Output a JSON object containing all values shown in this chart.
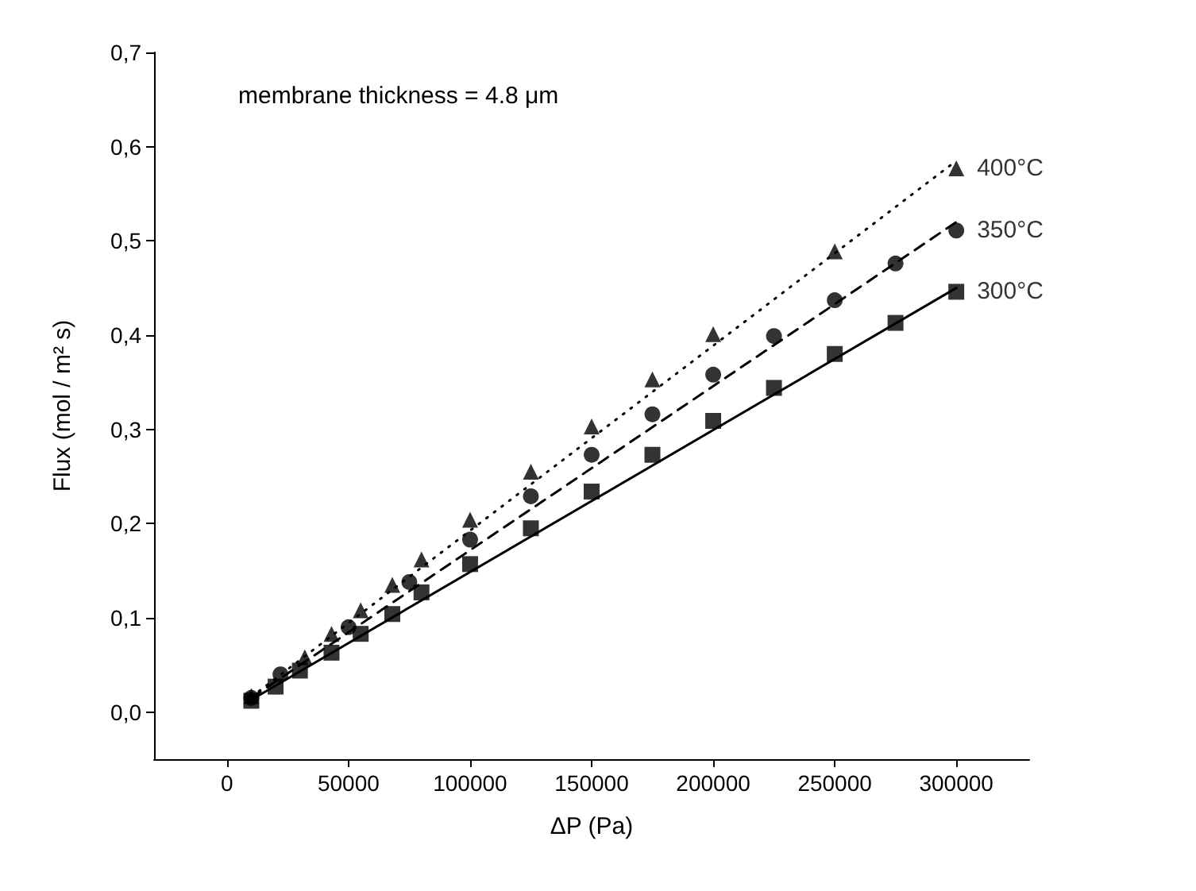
{
  "chart_data": {
    "type": "scatter",
    "xlabel": "ΔP (Pa)",
    "ylabel": "Flux (mol / m² s)",
    "annotations": [
      "membrane thickness = 4.8 μm"
    ],
    "xlim": [
      -30000,
      330000
    ],
    "xticks": [
      0,
      50000,
      100000,
      150000,
      200000,
      250000,
      300000
    ],
    "ylim": [
      -0.05,
      0.7
    ],
    "yticks": [
      {
        "value": 0,
        "label": "0,0"
      },
      {
        "value": 0.1,
        "label": "0,1"
      },
      {
        "value": 0.2,
        "label": "0,2"
      },
      {
        "value": 0.3,
        "label": "0,3"
      },
      {
        "value": 0.4,
        "label": "0,4"
      },
      {
        "value": 0.5,
        "label": "0,5"
      },
      {
        "value": 0.6,
        "label": "0,6"
      },
      {
        "value": 0.7,
        "label": "0,7"
      }
    ],
    "grid": false,
    "legend": false,
    "series": [
      {
        "name": "300°C",
        "marker": "square",
        "color": "#000000",
        "x": [
          10000,
          20000,
          30000,
          43000,
          55000,
          68000,
          80000,
          100000,
          125000,
          150000,
          175000,
          200000,
          225000,
          250000,
          275000,
          300000
        ],
        "values": [
          0.012,
          0.027,
          0.044,
          0.063,
          0.083,
          0.104,
          0.127,
          0.157,
          0.195,
          0.234,
          0.273,
          0.309,
          0.344,
          0.38,
          0.413,
          0.446
        ]
      },
      {
        "name": "350°C",
        "marker": "circle",
        "color": "#000000",
        "x": [
          10000,
          22000,
          50000,
          75000,
          100000,
          125000,
          150000,
          175000,
          200000,
          225000,
          250000,
          275000,
          300000
        ],
        "values": [
          0.015,
          0.04,
          0.09,
          0.138,
          0.183,
          0.229,
          0.273,
          0.316,
          0.358,
          0.399,
          0.437,
          0.476,
          0.511
        ]
      },
      {
        "name": "400°C",
        "marker": "triangle",
        "color": "#000000",
        "x": [
          10000,
          32000,
          43000,
          55000,
          68000,
          80000,
          100000,
          125000,
          150000,
          175000,
          200000,
          250000,
          300000
        ],
        "values": [
          0.017,
          0.058,
          0.083,
          0.108,
          0.135,
          0.162,
          0.204,
          0.255,
          0.303,
          0.353,
          0.401,
          0.489,
          0.577
        ]
      },
      {
        "type": "line",
        "line_style": "solid",
        "color": "#000000",
        "x": [
          10000,
          300000
        ],
        "values": [
          0.013,
          0.45
        ]
      },
      {
        "type": "line",
        "line_style": "dashed",
        "color": "#000000",
        "x": [
          10000,
          300000
        ],
        "values": [
          0.015,
          0.52
        ]
      },
      {
        "type": "line",
        "line_style": "dotted",
        "color": "#000000",
        "x": [
          10000,
          300000
        ],
        "values": [
          0.016,
          0.585
        ]
      }
    ]
  }
}
